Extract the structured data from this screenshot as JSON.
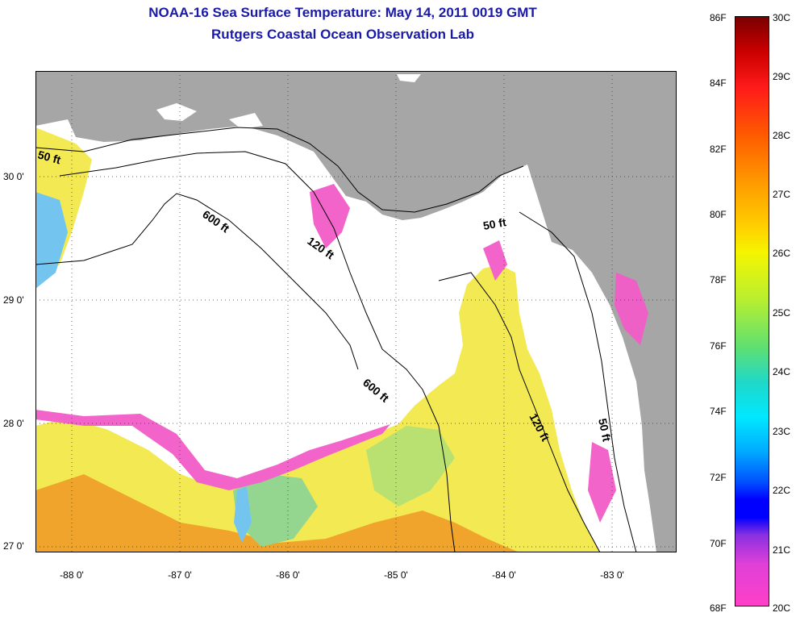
{
  "header": {
    "title": "NOAA-16 Sea Surface Temperature:  May 14, 2011 0019 GMT",
    "subtitle": "Rutgers Coastal Ocean Observation Lab"
  },
  "map": {
    "lat_labels": [
      "30 0'",
      "29 0'",
      "28 0'",
      "27 0'"
    ],
    "lon_labels": [
      "-88 0'",
      "-87 0'",
      "-86 0'",
      "-85 0'",
      "-84 0'",
      "-83 0'"
    ],
    "contour_labels": [
      "50 ft",
      "600 ft",
      "120 ft",
      "50 ft",
      "600 ft",
      "120 ft",
      "50 ft"
    ],
    "colors": {
      "land": "#a6a6a6",
      "no_data": "#ffffff",
      "coast": "#000000"
    }
  },
  "colorbar": {
    "fahrenheit": [
      "86F",
      "84F",
      "82F",
      "80F",
      "78F",
      "76F",
      "74F",
      "72F",
      "70F",
      "68F"
    ],
    "celsius": [
      "30C",
      "29C",
      "28C",
      "27C",
      "26C",
      "25C",
      "24C",
      "23C",
      "22C",
      "21C",
      "20C"
    ],
    "min_c": 20,
    "max_c": 30
  }
}
